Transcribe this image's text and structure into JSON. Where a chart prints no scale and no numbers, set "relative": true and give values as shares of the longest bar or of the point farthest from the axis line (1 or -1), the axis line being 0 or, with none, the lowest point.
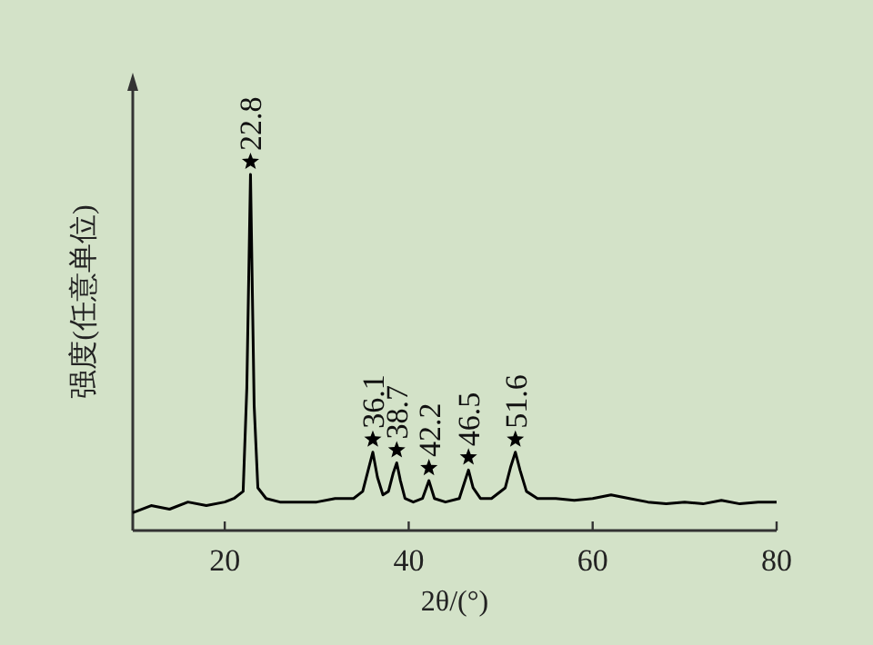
{
  "chart_data": {
    "type": "line",
    "xlabel": "2θ/(°)",
    "ylabel": "强度(任意单位)",
    "relative": true,
    "xlim": [
      10,
      80
    ],
    "xticks": [
      20,
      40,
      60,
      80
    ],
    "x": [
      10,
      12,
      14,
      16,
      18,
      20,
      21,
      22,
      22.4,
      22.8,
      23.2,
      23.6,
      24.5,
      26,
      28,
      30,
      32,
      34,
      35,
      35.6,
      36.1,
      36.6,
      37.2,
      37.8,
      38.3,
      38.7,
      39.1,
      39.6,
      40.5,
      41.5,
      42.2,
      42.8,
      44,
      45.5,
      46,
      46.5,
      47,
      47.8,
      49,
      50.5,
      51.1,
      51.6,
      52.1,
      52.8,
      54,
      56,
      58,
      60,
      62,
      64,
      66,
      68,
      70,
      72,
      74,
      76,
      78,
      80
    ],
    "series": [
      {
        "color": "#000000",
        "values": [
          0.05,
          0.07,
          0.06,
          0.08,
          0.07,
          0.08,
          0.09,
          0.11,
          0.4,
          1.0,
          0.35,
          0.12,
          0.09,
          0.08,
          0.08,
          0.08,
          0.09,
          0.09,
          0.11,
          0.17,
          0.22,
          0.15,
          0.1,
          0.11,
          0.16,
          0.19,
          0.14,
          0.09,
          0.08,
          0.09,
          0.14,
          0.09,
          0.08,
          0.09,
          0.13,
          0.17,
          0.12,
          0.09,
          0.09,
          0.12,
          0.18,
          0.22,
          0.17,
          0.11,
          0.09,
          0.09,
          0.085,
          0.09,
          0.1,
          0.09,
          0.08,
          0.075,
          0.08,
          0.075,
          0.085,
          0.075,
          0.08,
          0.08
        ]
      }
    ],
    "annotations": [
      {
        "text": "22.8",
        "x": 22.8,
        "y": 1.0
      },
      {
        "text": "36.1",
        "x": 36.1,
        "y": 0.22
      },
      {
        "text": "38.7",
        "x": 38.7,
        "y": 0.19
      },
      {
        "text": "42.2",
        "x": 42.2,
        "y": 0.14
      },
      {
        "text": "46.5",
        "x": 46.5,
        "y": 0.17
      },
      {
        "text": "51.6",
        "x": 51.6,
        "y": 0.22
      }
    ]
  }
}
